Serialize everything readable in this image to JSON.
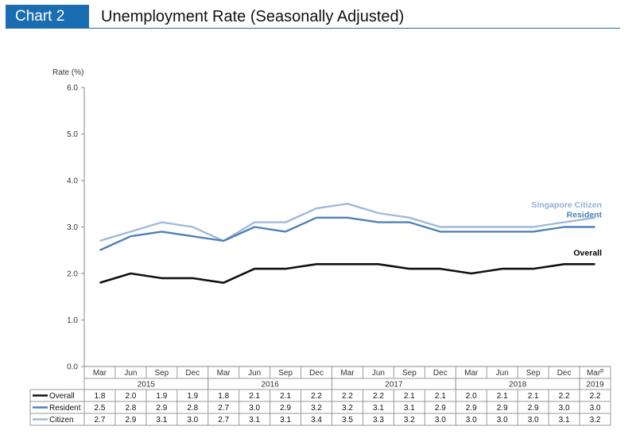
{
  "header": {
    "tag": "Chart 2",
    "title": "Unemployment Rate (Seasonally Adjusted)"
  },
  "chart_data": {
    "type": "line",
    "ylabel": "Rate (%)",
    "ylim": [
      0,
      6
    ],
    "yticks": [
      "0.0",
      "1.0",
      "2.0",
      "3.0",
      "4.0",
      "5.0",
      "6.0"
    ],
    "grid": false,
    "categories": [
      "Mar",
      "Jun",
      "Sep",
      "Dec",
      "Mar",
      "Jun",
      "Sep",
      "Dec",
      "Mar",
      "Jun",
      "Sep",
      "Dec",
      "Mar",
      "Jun",
      "Sep",
      "Dec",
      "Mar"
    ],
    "last_category_superscript": "p",
    "years": [
      {
        "label": "2015",
        "span": 4
      },
      {
        "label": "2016",
        "span": 4
      },
      {
        "label": "2017",
        "span": 4
      },
      {
        "label": "2018",
        "span": 4
      },
      {
        "label": "2019",
        "span": 1
      }
    ],
    "series": [
      {
        "name": "Overall",
        "color": "#111111",
        "label_color": "#000000",
        "end_label": "Overall",
        "values": [
          1.8,
          2.0,
          1.9,
          1.9,
          1.8,
          2.1,
          2.1,
          2.2,
          2.2,
          2.2,
          2.1,
          2.1,
          2.0,
          2.1,
          2.1,
          2.2,
          2.2
        ]
      },
      {
        "name": "Resident",
        "color": "#4f81b7",
        "label_color": "#4f81b7",
        "end_label": "Resident",
        "values": [
          2.5,
          2.8,
          2.9,
          2.8,
          2.7,
          3.0,
          2.9,
          3.2,
          3.2,
          3.1,
          3.1,
          2.9,
          2.9,
          2.9,
          2.9,
          3.0,
          3.0
        ]
      },
      {
        "name": "Citizen",
        "color": "#9fbad8",
        "label_color": "#8fb0d6",
        "end_label": "Singapore Citizen",
        "values": [
          2.7,
          2.9,
          3.1,
          3.0,
          2.7,
          3.1,
          3.1,
          3.4,
          3.5,
          3.3,
          3.2,
          3.0,
          3.0,
          3.0,
          3.0,
          3.1,
          3.2
        ]
      }
    ]
  }
}
